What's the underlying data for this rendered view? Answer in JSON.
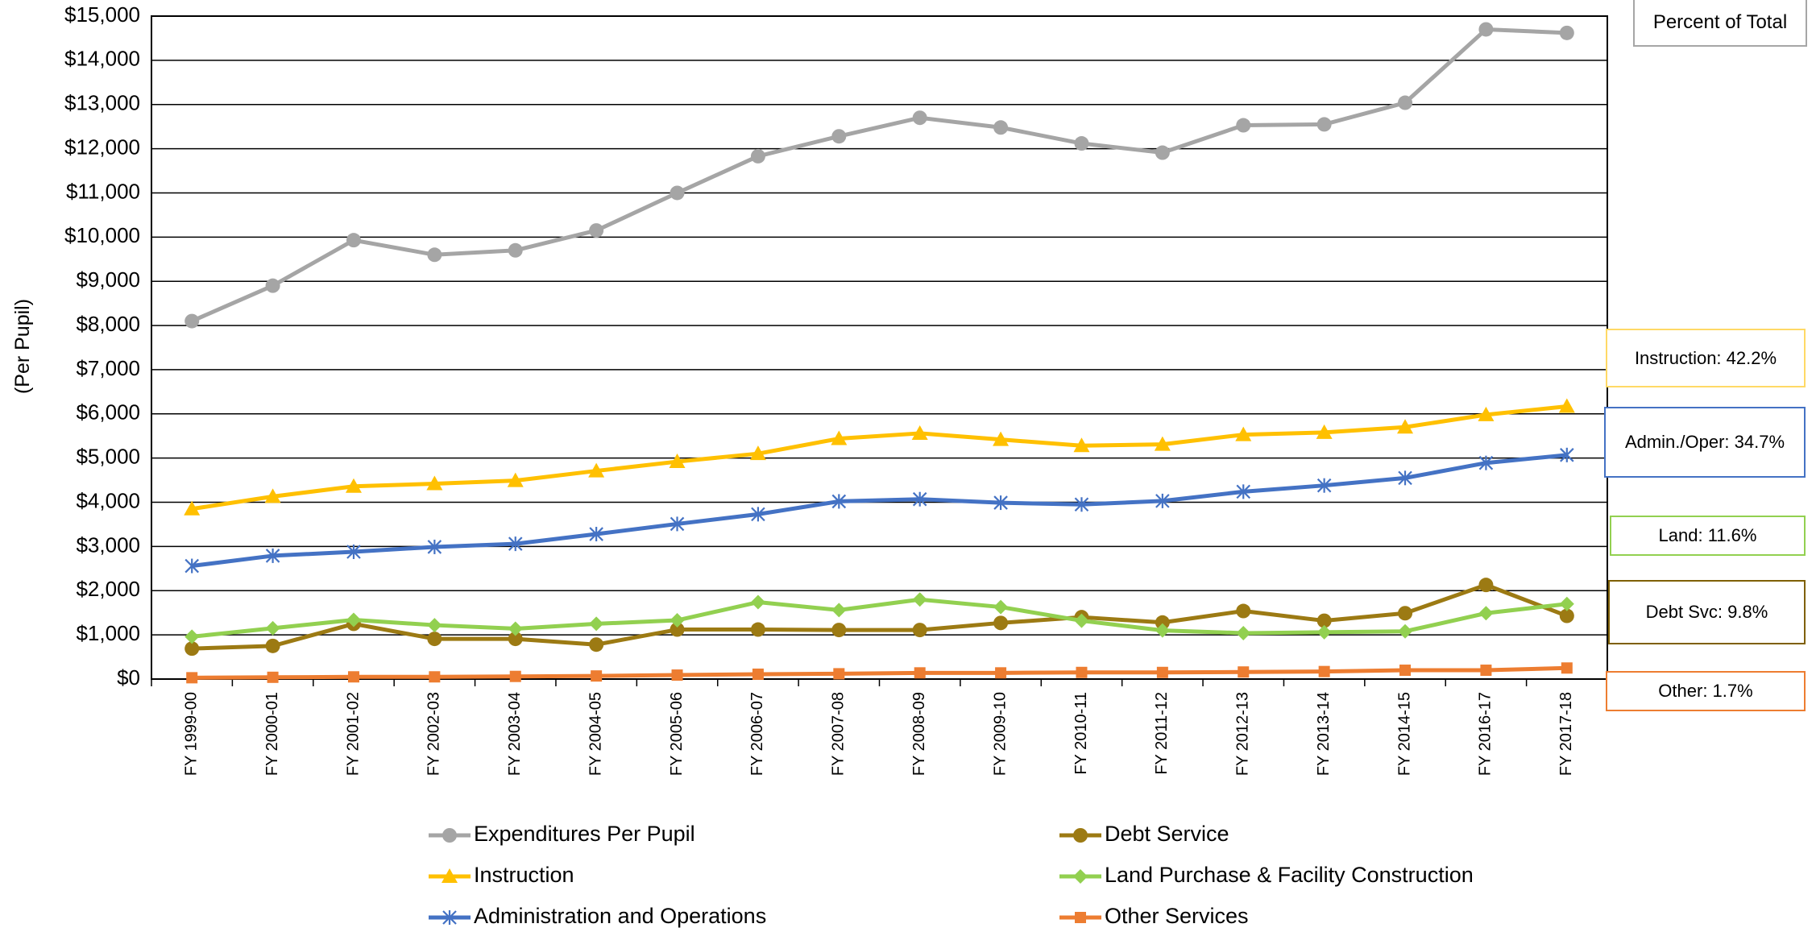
{
  "percent_box_label": "Percent of Total",
  "callouts": [
    {
      "key": "instruction",
      "text": "Instruction: 42.2%",
      "color": "#ffd966"
    },
    {
      "key": "admin",
      "text": "Admin./Oper: 34.7%",
      "color": "#4472c4"
    },
    {
      "key": "land",
      "text": "Land: 11.6%",
      "color": "#92d050"
    },
    {
      "key": "debt",
      "text": "Debt Svc: 9.8%",
      "color": "#7f6000"
    },
    {
      "key": "other",
      "text": "Other: 1.7%",
      "color": "#ed7d31"
    }
  ],
  "chart_data": {
    "type": "line",
    "title": "",
    "xlabel": "",
    "ylabel": "(Per Pupil)",
    "ylim": [
      0,
      15000
    ],
    "y_tick_step": 1000,
    "y_tick_labels": [
      "$0",
      "$1,000",
      "$2,000",
      "$3,000",
      "$4,000",
      "$5,000",
      "$6,000",
      "$7,000",
      "$8,000",
      "$9,000",
      "$10,000",
      "$11,000",
      "$12,000",
      "$13,000",
      "$14,000",
      "$15,000"
    ],
    "grid": true,
    "legend_position": "bottom",
    "categories": [
      "FY 1999-00",
      "FY 2000-01",
      "FY 2001-02",
      "FY 2002-03",
      "FY 2003-04",
      "FY 2004-05",
      "FY 2005-06",
      "FY 2006-07",
      "FY 2007-08",
      "FY 2008-09",
      "FY 2009-10",
      "FY 2010-11",
      "FY 2011-12",
      "FY 2012-13",
      "FY 2013-14",
      "FY 2014-15",
      "FY 2016-17",
      "FY 2017-18"
    ],
    "series": [
      {
        "name": "Expenditures Per Pupil",
        "color": "#a5a5a5",
        "marker": "circle",
        "values": [
          8100,
          8900,
          9930,
          9600,
          9700,
          10150,
          11000,
          11830,
          12280,
          12700,
          12480,
          12120,
          11910,
          12530,
          12550,
          13040,
          14700,
          14620
        ]
      },
      {
        "name": "Instruction",
        "color": "#ffc000",
        "marker": "triangle",
        "values": [
          3850,
          4130,
          4360,
          4420,
          4490,
          4710,
          4920,
          5100,
          5440,
          5560,
          5420,
          5280,
          5310,
          5530,
          5580,
          5700,
          5980,
          6170
        ]
      },
      {
        "name": "Administration and Operations",
        "color": "#4472c4",
        "marker": "star",
        "values": [
          2560,
          2790,
          2880,
          2990,
          3060,
          3280,
          3510,
          3730,
          4020,
          4070,
          3990,
          3950,
          4030,
          4240,
          4380,
          4550,
          4890,
          5070
        ]
      },
      {
        "name": "Debt Service",
        "color": "#9c7a13",
        "marker": "circle",
        "values": [
          690,
          750,
          1250,
          910,
          910,
          780,
          1120,
          1120,
          1110,
          1110,
          1270,
          1400,
          1280,
          1540,
          1320,
          1490,
          2130,
          1430
        ]
      },
      {
        "name": "Land Purchase & Facility Construction",
        "color": "#92d050",
        "marker": "diamond",
        "values": [
          960,
          1150,
          1340,
          1220,
          1140,
          1250,
          1330,
          1740,
          1560,
          1800,
          1630,
          1320,
          1100,
          1040,
          1060,
          1080,
          1490,
          1700
        ]
      },
      {
        "name": "Other Services",
        "color": "#ed7d31",
        "marker": "square",
        "values": [
          30,
          40,
          50,
          50,
          60,
          70,
          90,
          110,
          120,
          140,
          140,
          150,
          150,
          160,
          170,
          200,
          200,
          250
        ]
      }
    ]
  }
}
